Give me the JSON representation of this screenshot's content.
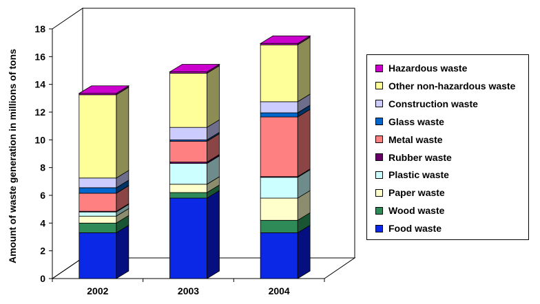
{
  "chart_data": {
    "type": "bar",
    "stacked": true,
    "three_d": true,
    "categories": [
      "2002",
      "2003",
      "2004"
    ],
    "ylabel": "Amount of waste generation in millions of tons",
    "xlabel": "",
    "ylim": [
      0,
      18
    ],
    "yticks": [
      "0",
      "2",
      "4",
      "6",
      "8",
      "10",
      "12",
      "14",
      "16",
      "18"
    ],
    "grid": false,
    "legend_position": "right",
    "series": [
      {
        "name": "Food waste",
        "color": "#0a28e6",
        "side_color": "#050f80",
        "values": [
          3.3,
          5.8,
          3.3
        ]
      },
      {
        "name": "Wood waste",
        "color": "#2e8b57",
        "side_color": "#1a5533",
        "values": [
          0.7,
          0.4,
          0.9
        ]
      },
      {
        "name": "Paper waste",
        "color": "#ffffcc",
        "side_color": "#8c8c6e",
        "values": [
          0.5,
          0.6,
          1.6
        ]
      },
      {
        "name": "Plastic waste",
        "color": "#ccffff",
        "side_color": "#6e8c8c",
        "values": [
          0.3,
          1.5,
          1.5
        ]
      },
      {
        "name": "Rubber waste",
        "color": "#660066",
        "side_color": "#330033",
        "values": [
          0.05,
          0.1,
          0.05
        ]
      },
      {
        "name": "Metal waste",
        "color": "#ff8080",
        "side_color": "#8c4545",
        "values": [
          1.3,
          1.5,
          4.3
        ]
      },
      {
        "name": "Glass waste",
        "color": "#0066cc",
        "side_color": "#003366",
        "values": [
          0.4,
          0.1,
          0.3
        ]
      },
      {
        "name": "Construction waste",
        "color": "#ccccff",
        "side_color": "#6e6e8c",
        "values": [
          0.7,
          0.9,
          0.8
        ]
      },
      {
        "name": "Other non-hazardous waste",
        "color": "#ffff99",
        "side_color": "#8c8c55",
        "values": [
          6.0,
          3.9,
          4.1
        ]
      },
      {
        "name": "Hazardous waste",
        "color": "#cc00cc",
        "side_color": "#6e006e",
        "values": [
          0.1,
          0.1,
          0.1
        ]
      }
    ],
    "legend_order": [
      9,
      8,
      7,
      6,
      5,
      4,
      3,
      2,
      1,
      0
    ]
  }
}
